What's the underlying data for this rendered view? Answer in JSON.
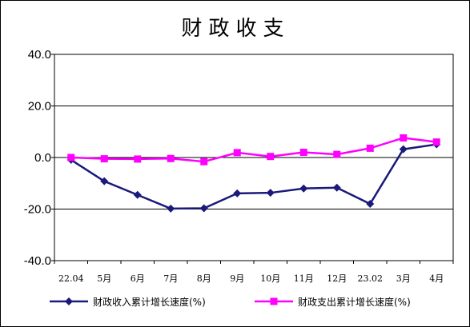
{
  "chart_data": {
    "type": "line",
    "title": "财政收支",
    "categories": [
      "22.04",
      "5月",
      "6月",
      "7月",
      "8月",
      "9月",
      "10月",
      "11月",
      "12月",
      "23.02",
      "3月",
      "4月"
    ],
    "ylim": [
      -40,
      40
    ],
    "yticks": [
      "40.0",
      "20.0",
      "0.0",
      "-20.0",
      "-40.0"
    ],
    "ytick_values": [
      40,
      20,
      0,
      -20,
      -40
    ],
    "grid": "horizontal",
    "legend_position": "bottom",
    "series": [
      {
        "name": "财政收入累计增长速度(%)",
        "color": "#1a1a7a",
        "marker": "diamond",
        "values": [
          -0.9,
          -9.2,
          -14.5,
          -19.8,
          -19.7,
          -13.9,
          -13.7,
          -12.0,
          -11.7,
          -18.0,
          3.2,
          5.1
        ]
      },
      {
        "name": "财政支出累计增长速度(%)",
        "color": "#ff00ff",
        "marker": "square",
        "values": [
          0.0,
          -0.5,
          -0.6,
          -0.4,
          -1.6,
          1.9,
          0.4,
          2.0,
          1.2,
          3.6,
          7.6,
          6.0
        ]
      }
    ]
  }
}
